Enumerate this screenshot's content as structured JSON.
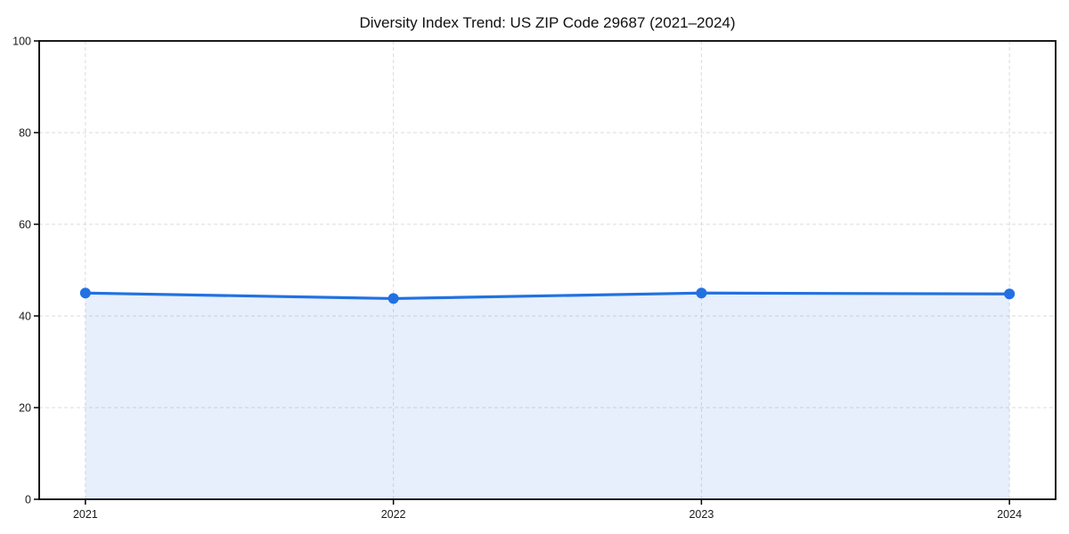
{
  "chart_data": {
    "type": "line",
    "title": "Diversity Index Trend: US ZIP Code 29687 (2021–2024)",
    "series_name": "Diversity Index",
    "categories": [
      "2021",
      "2022",
      "2023",
      "2024"
    ],
    "values": [
      45.0,
      43.8,
      45.0,
      44.8
    ],
    "xlabel": "",
    "ylabel": "",
    "ylim": [
      0,
      100
    ],
    "yticks": [
      0,
      20,
      40,
      60,
      80,
      100
    ],
    "grid": true,
    "grid_style": "dashed",
    "legend": false,
    "area_fill": true,
    "marker": "circle",
    "colors": {
      "line": "#2171e2",
      "marker": "#2171e2",
      "area": "rgba(33, 113, 226, 0.11)",
      "grid": "#d5d5d5",
      "spine": "#000000",
      "text": "#1a1a1a",
      "background": "#ffffff"
    }
  }
}
